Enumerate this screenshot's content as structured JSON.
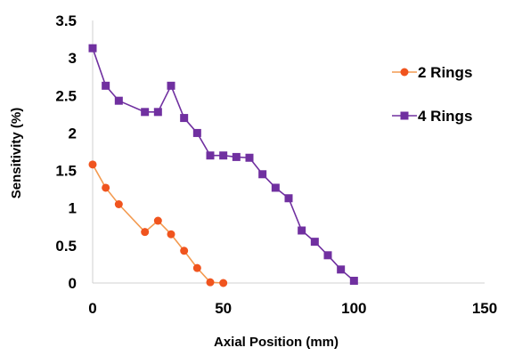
{
  "chart_data": {
    "type": "line",
    "title": "",
    "xlabel": "Axial Position (mm)",
    "ylabel": "Sensitivity (%)",
    "xlim": [
      0,
      150
    ],
    "ylim": [
      0,
      3.5
    ],
    "x_ticks": [
      0,
      50,
      100,
      150
    ],
    "y_ticks": [
      0,
      0.5,
      1,
      1.5,
      2,
      2.5,
      3,
      3.5
    ],
    "x_tick_labels": [
      "0",
      "50",
      "100",
      "150"
    ],
    "y_tick_labels": [
      "0",
      "0.5",
      "1",
      "1.5",
      "2",
      "2.5",
      "3",
      "3.5"
    ],
    "grid": false,
    "legend_position": "right",
    "series": [
      {
        "name": "2 Rings",
        "color": "#F0541E",
        "line_color": "#F39A50",
        "marker": "circle",
        "x": [
          0,
          5,
          10,
          20,
          25,
          30,
          35,
          40,
          45,
          50
        ],
        "y": [
          1.58,
          1.27,
          1.05,
          0.68,
          0.83,
          0.65,
          0.43,
          0.2,
          0.01,
          0.0
        ]
      },
      {
        "name": "4 Rings",
        "color": "#7030A0",
        "line_color": "#7030A0",
        "marker": "square",
        "x": [
          0,
          5,
          10,
          20,
          25,
          30,
          35,
          40,
          45,
          50,
          55,
          60,
          65,
          70,
          75,
          80,
          85,
          90,
          95,
          100
        ],
        "y": [
          3.13,
          2.63,
          2.43,
          2.28,
          2.28,
          2.63,
          2.2,
          2.0,
          1.7,
          1.7,
          1.68,
          1.67,
          1.45,
          1.27,
          1.13,
          0.7,
          0.55,
          0.37,
          0.18,
          0.03
        ]
      }
    ]
  }
}
